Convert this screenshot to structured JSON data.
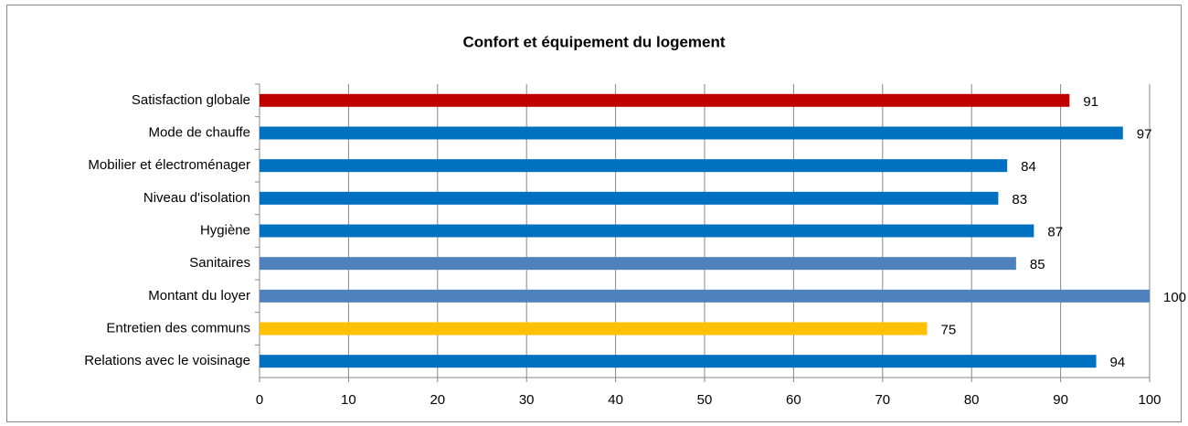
{
  "chart_data": {
    "type": "barh",
    "title": "Confort et équipement du logement",
    "categories": [
      "Satisfaction globale",
      "Mode de chauffe",
      "Mobilier et électroménager",
      "Niveau d'isolation",
      "Hygiène",
      "Sanitaires",
      "Montant du loyer",
      "Entretien des communs",
      "Relations avec le voisinage"
    ],
    "values": [
      91,
      97,
      84,
      83,
      87,
      85,
      100,
      75,
      94
    ],
    "colors": [
      "#c00000",
      "#0070c0",
      "#0070c0",
      "#0070c0",
      "#0070c0",
      "#4f81bd",
      "#4f81bd",
      "#ffc000",
      "#0070c0"
    ],
    "xlim": [
      0,
      100
    ],
    "xticks": [
      0,
      10,
      20,
      30,
      40,
      50,
      60,
      70,
      80,
      90,
      100
    ],
    "grid": true
  }
}
